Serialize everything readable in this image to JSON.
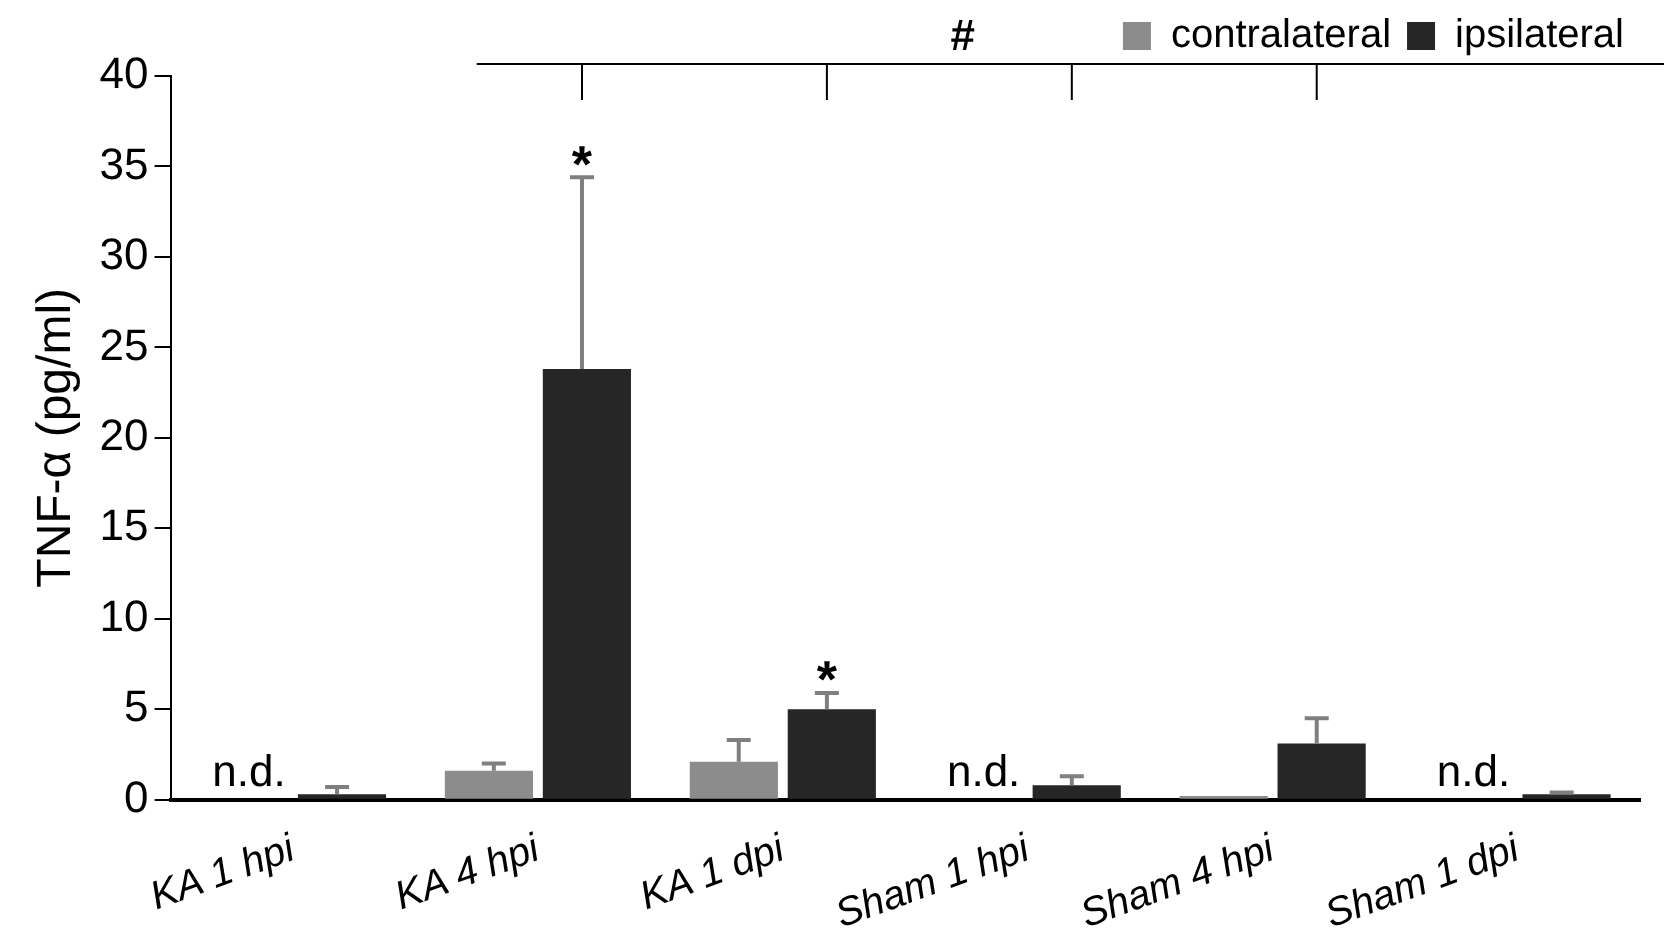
{
  "chart_data": {
    "type": "bar",
    "ylabel": "TNF-α (pg/ml)",
    "categories": [
      "KA 1 hpi",
      "KA 4 hpi",
      "KA 1 dpi",
      "Sham 1 hpi",
      "Sham 4 hpi",
      "Sham 1 dpi"
    ],
    "series": [
      {
        "name": "contralateral",
        "color": "#8c8c8c",
        "values": [
          null,
          1.6,
          2.1,
          null,
          0.2,
          null
        ],
        "errors": [
          null,
          0.4,
          1.2,
          null,
          null,
          null
        ]
      },
      {
        "name": "ipsilateral",
        "color": "#262626",
        "values": [
          0.3,
          23.8,
          5.0,
          0.8,
          3.1,
          0.3
        ],
        "errors": [
          0.4,
          10.6,
          0.9,
          0.5,
          1.4,
          0.1
        ]
      }
    ],
    "ylim": [
      0,
      40
    ],
    "yticks": [
      0,
      5,
      10,
      15,
      20,
      25,
      30,
      35,
      40
    ],
    "grid": false,
    "legend": "top right",
    "annotations": [
      {
        "text": "n.d.",
        "x": "KA 1 hpi",
        "y": 0
      },
      {
        "text": "*",
        "x": "KA 4 hpi",
        "y": 34.4
      },
      {
        "text": "*",
        "x": "KA 1 dpi",
        "y": 5.9
      },
      {
        "text": "n.d.",
        "x": "Sham 1 hpi",
        "y": 0
      },
      {
        "text": "n.d.",
        "x": "Sham 1 dpi",
        "y": 0
      },
      "#"
    ]
  }
}
